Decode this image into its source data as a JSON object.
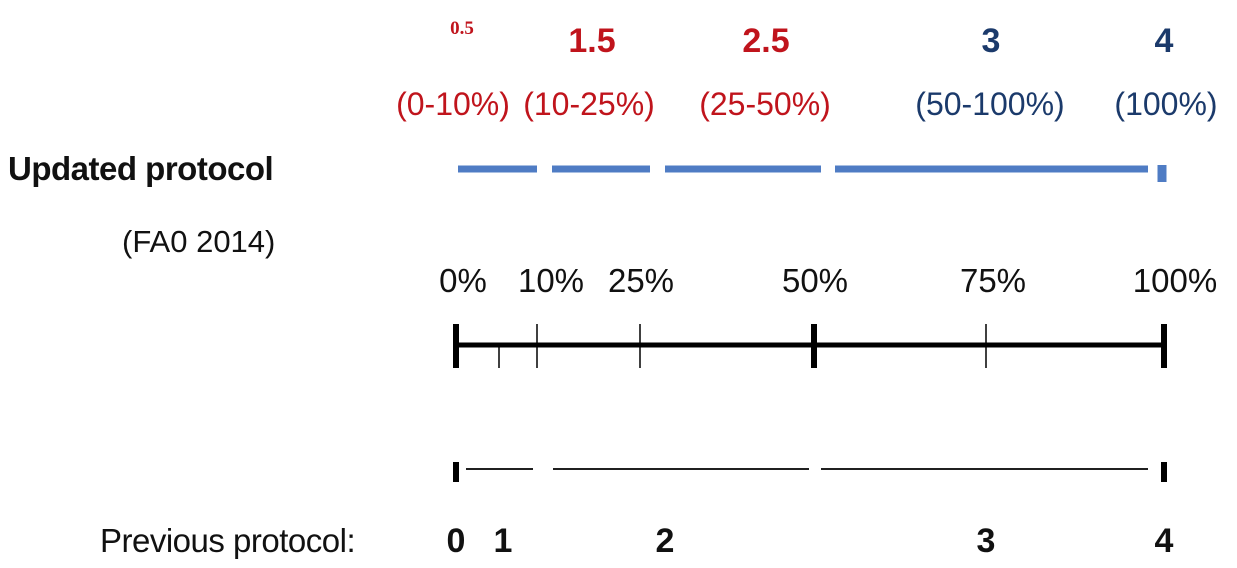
{
  "updated_protocol": {
    "title": "Updated protocol",
    "subtitle": "(FA0 2014)",
    "scores": [
      "0.5",
      "1.5",
      "2.5",
      "3",
      "4"
    ],
    "ranges": [
      "(0-10%)",
      "(10-25%)",
      "(25-50%)",
      "(50-100%)",
      "(100%)"
    ],
    "score_colors": [
      "#c0141c",
      "#c0141c",
      "#c0141c",
      "#1b3a6b",
      "#1b3a6b"
    ],
    "segment_color": "#4f7cc4"
  },
  "scale": {
    "percent_labels": [
      "0%",
      "10%",
      "25%",
      "50%",
      "75%",
      "100%"
    ],
    "minor_ticks_at_percent": [
      6,
      11,
      25,
      75
    ],
    "major_ticks_at_percent": [
      0,
      50,
      100
    ]
  },
  "previous_protocol": {
    "label": "Previous protocol:",
    "scores": [
      "0",
      "1",
      "2",
      "3",
      "4"
    ]
  }
}
